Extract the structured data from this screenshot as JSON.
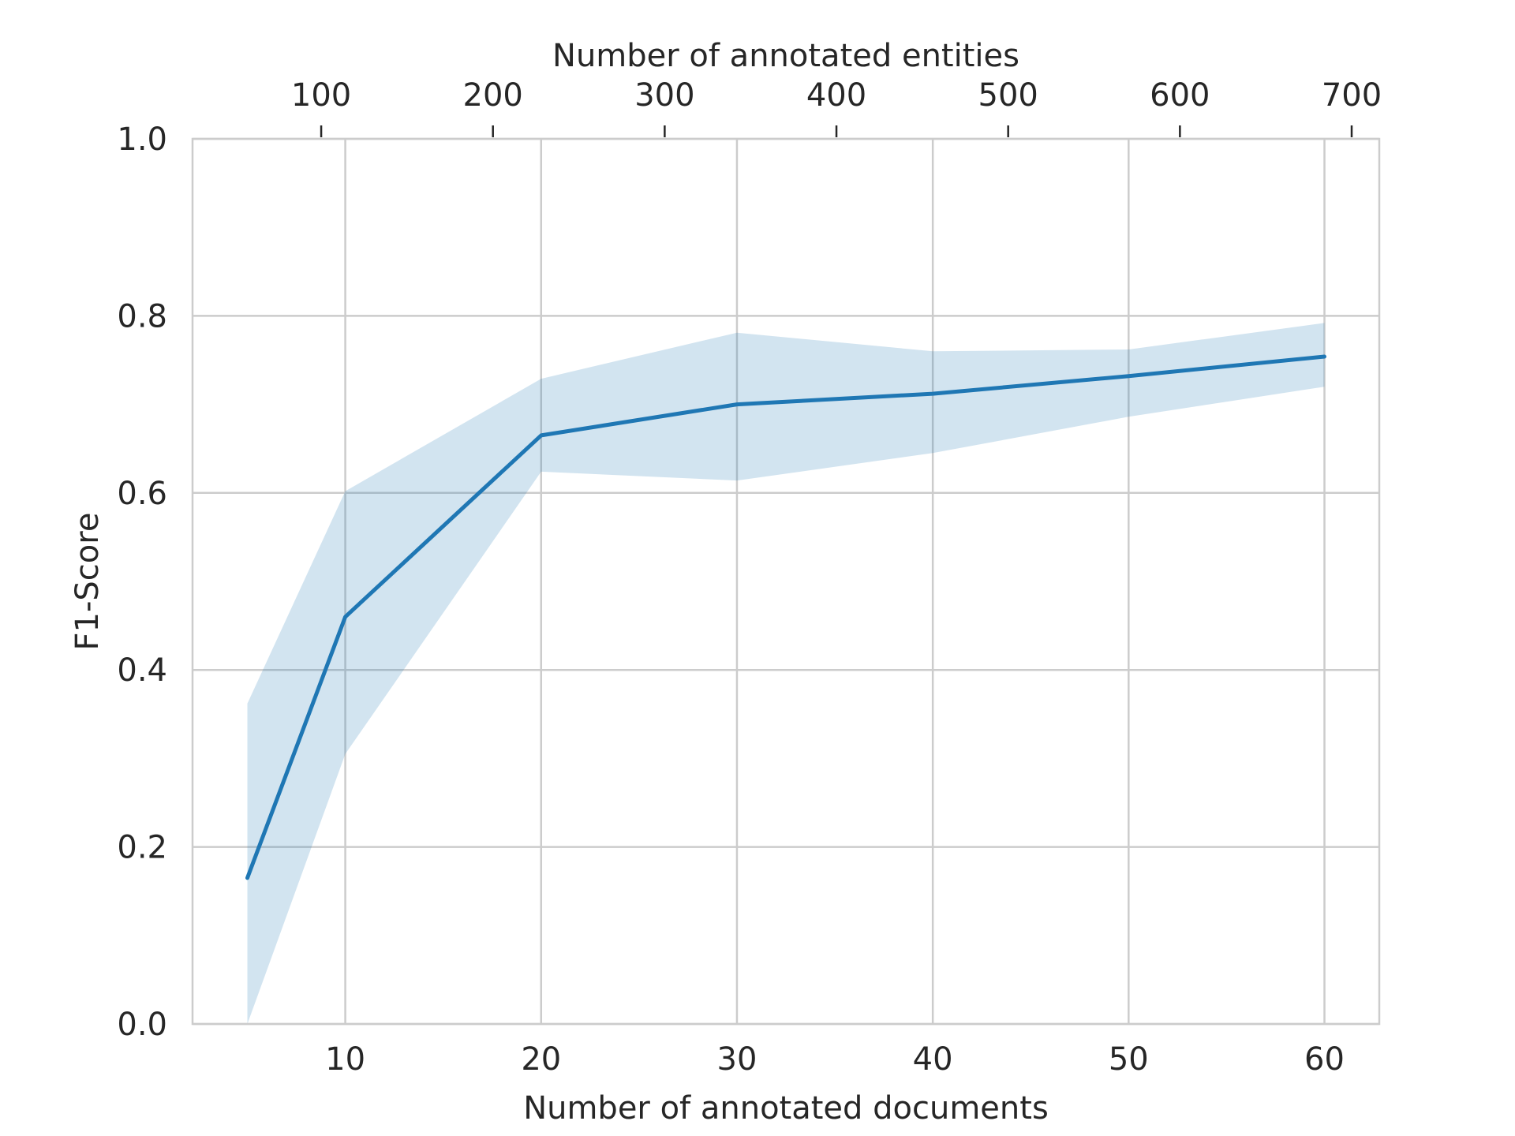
{
  "chart_data": {
    "type": "line",
    "xlabel": "Number of annotated documents",
    "x2label": "Number of annotated entities",
    "ylabel": "F1-Score",
    "xlim": [
      2.2,
      62.8
    ],
    "ylim": [
      0.0,
      1.0
    ],
    "x_ticks": [
      10,
      20,
      30,
      40,
      50,
      60
    ],
    "y_ticks": [
      0.0,
      0.2,
      0.4,
      0.6,
      0.8,
      1.0
    ],
    "x2_ticks": [
      100,
      200,
      300,
      400,
      500,
      600,
      700
    ],
    "x2_to_x_factor": 0.0877,
    "grid": true,
    "colors": {
      "line": "#1f77b4",
      "band": "#1f77b4",
      "grid": "#cccccc"
    },
    "series": [
      {
        "x": [
          5,
          10,
          20,
          30,
          40,
          50,
          60
        ],
        "y": [
          0.165,
          0.46,
          0.665,
          0.7,
          0.712,
          0.732,
          0.754
        ],
        "y_lower": [
          0.0,
          0.305,
          0.624,
          0.614,
          0.645,
          0.686,
          0.72
        ],
        "y_upper": [
          0.362,
          0.602,
          0.729,
          0.781,
          0.76,
          0.762,
          0.792
        ]
      }
    ]
  }
}
